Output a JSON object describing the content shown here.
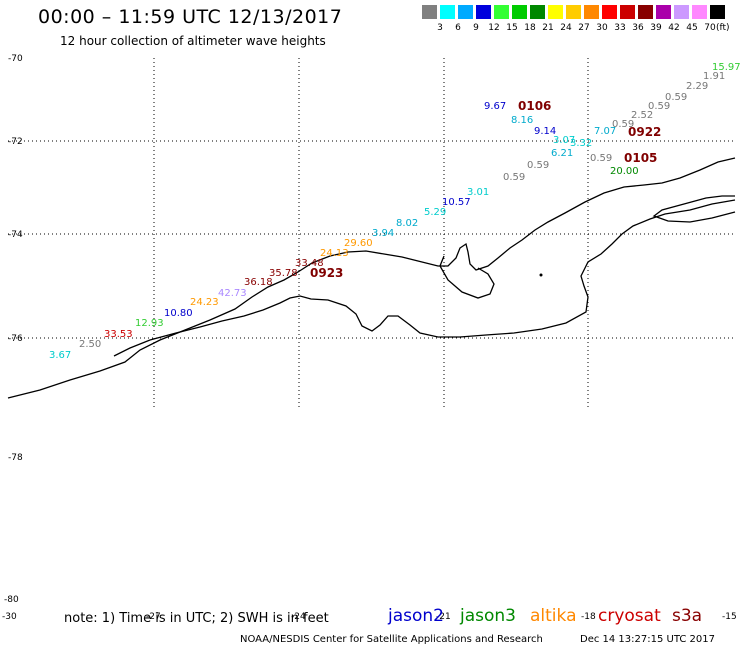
{
  "title": "00:00 – 11:59 UTC 12/13/2017",
  "subtitle": "12 hour collection of altimeter wave heights",
  "colorbar": {
    "colors": [
      "#808080",
      "#00ffff",
      "#00aaff",
      "#0000dd",
      "#33ff33",
      "#00cc00",
      "#008800",
      "#ffff00",
      "#ffcc00",
      "#ff8800",
      "#ff0000",
      "#cc0000",
      "#880000",
      "#aa00aa",
      "#cc99ff",
      "#ff88ff",
      "#000000"
    ],
    "labels": [
      "3",
      "6",
      "9",
      "12",
      "15",
      "18",
      "21",
      "24",
      "27",
      "30",
      "33",
      "36",
      "39",
      "42",
      "45",
      "70"
    ],
    "unit": "(ft)"
  },
  "latitude_labels": [
    "-70",
    "-72",
    "-74",
    "-76",
    "-78",
    "-80"
  ],
  "longitude_labels": [
    "-30",
    "-27",
    "-24",
    "-21",
    "-18",
    "-15"
  ],
  "map_points": [
    {
      "text": "3.67",
      "color": "#00cccc"
    },
    {
      "text": "2.50",
      "color": "#777777"
    },
    {
      "text": "33.53",
      "color": "#cc0000"
    },
    {
      "text": "12.93",
      "color": "#33cc33"
    },
    {
      "text": "10.80",
      "color": "#0000cc"
    },
    {
      "text": "24.23",
      "color": "#ff9900"
    },
    {
      "text": "42.73",
      "color": "#aa88ff"
    },
    {
      "text": "36.18",
      "color": "#880000"
    },
    {
      "text": "35.78",
      "color": "#880000"
    },
    {
      "text": "33.48",
      "color": "#880000"
    },
    {
      "text": "24.13",
      "color": "#ff9900"
    },
    {
      "text": "29.60",
      "color": "#ff9900"
    },
    {
      "text": "3.94",
      "color": "#00aacc"
    },
    {
      "text": "8.02",
      "color": "#00aacc"
    },
    {
      "text": "5.29",
      "color": "#00cccc"
    },
    {
      "text": "10.57",
      "color": "#0000cc"
    },
    {
      "text": "3.01",
      "color": "#00cccc"
    },
    {
      "text": "0.59",
      "color": "#777777"
    },
    {
      "text": "0.59",
      "color": "#777777"
    },
    {
      "text": "6.21",
      "color": "#00aacc"
    },
    {
      "text": "3.07",
      "color": "#00cccc"
    },
    {
      "text": "3.32",
      "color": "#00cccc"
    },
    {
      "text": "9.14",
      "color": "#0000cc"
    },
    {
      "text": "8.16",
      "color": "#00aacc"
    },
    {
      "text": "9.67",
      "color": "#0000cc"
    },
    {
      "text": "7.07",
      "color": "#00aacc"
    },
    {
      "text": "0.59",
      "color": "#777777"
    },
    {
      "text": "0.59",
      "color": "#777777"
    },
    {
      "text": "2.52",
      "color": "#777777"
    },
    {
      "text": "0.59",
      "color": "#777777"
    },
    {
      "text": "0.59",
      "color": "#777777"
    },
    {
      "text": "2.29",
      "color": "#777777"
    },
    {
      "text": "1.91",
      "color": "#777777"
    },
    {
      "text": "15.97",
      "color": "#33cc33"
    },
    {
      "text": "20.00",
      "color": "#008800"
    }
  ],
  "pass_times": [
    "0106",
    "0922",
    "0105",
    "0923"
  ],
  "footnote": "note: 1) Time is in UTC; 2) SWH is in feet",
  "satellites": [
    {
      "name": "jason2",
      "color": "#0000cc"
    },
    {
      "name": "jason3",
      "color": "#008800"
    },
    {
      "name": "altika",
      "color": "#ff8800"
    },
    {
      "name": "cryosat",
      "color": "#cc0000"
    },
    {
      "name": "s3a",
      "color": "#880000"
    }
  ],
  "credit": "NOAA/NESDIS Center for Satellite Applications and Research",
  "generated": "Dec 14 13:27:15 UTC 2017"
}
